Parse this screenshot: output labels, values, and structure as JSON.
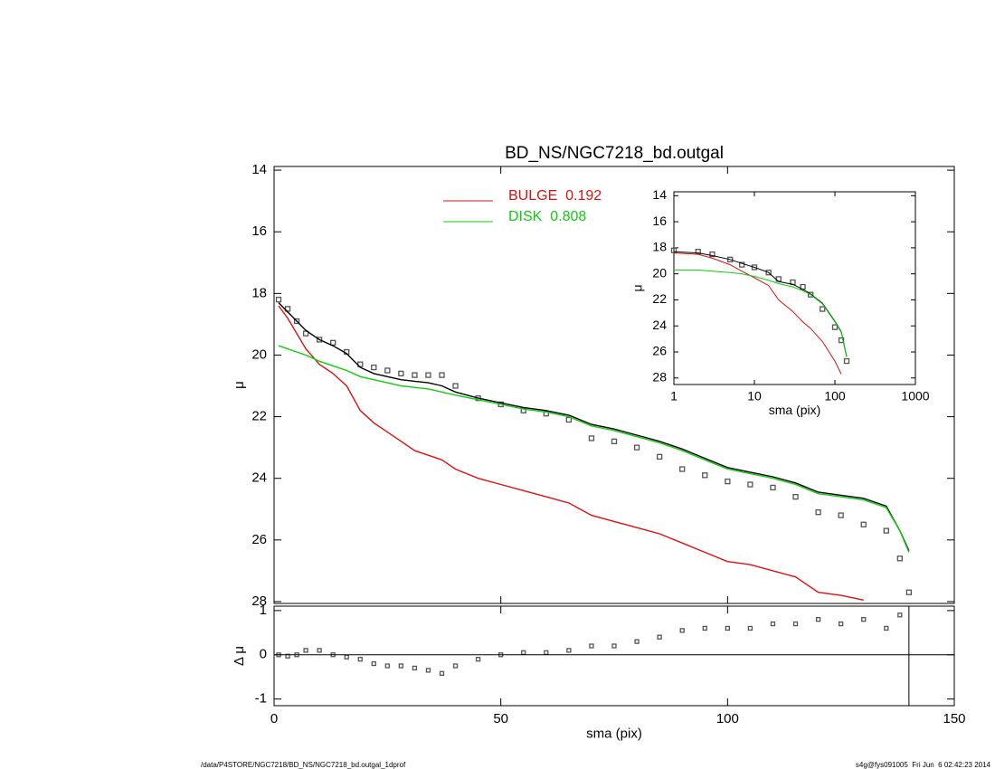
{
  "chart_data": [
    {
      "type": "line",
      "title": "BD_NS/NGC7218_bd.outgal",
      "ylabel": "μ",
      "x": [
        1,
        3,
        5,
        7,
        10,
        13,
        16,
        19,
        22,
        25,
        28,
        31,
        34,
        37,
        40,
        45,
        50,
        55,
        60,
        65,
        70,
        75,
        80,
        85,
        90,
        95,
        100,
        105,
        110,
        115,
        120,
        125,
        130,
        135,
        138,
        140
      ],
      "series": [
        {
          "type": "scatter",
          "color": "#555555",
          "values": [
            18.2,
            18.5,
            18.9,
            19.3,
            19.5,
            19.6,
            19.9,
            20.3,
            20.4,
            20.5,
            20.6,
            20.65,
            20.65,
            20.65,
            21.0,
            21.4,
            21.6,
            21.8,
            21.9,
            22.1,
            22.7,
            22.8,
            23.0,
            23.3,
            23.7,
            23.9,
            24.1,
            24.2,
            24.3,
            24.6,
            25.1,
            25.2,
            25.5,
            25.7,
            26.6,
            27.7
          ]
        },
        {
          "type": "line",
          "color": "#000000",
          "values": [
            18.3,
            18.6,
            18.9,
            19.2,
            19.5,
            19.7,
            19.95,
            20.4,
            20.6,
            20.7,
            20.8,
            20.85,
            20.9,
            21.0,
            21.2,
            21.4,
            21.55,
            21.7,
            21.8,
            21.95,
            22.25,
            22.4,
            22.6,
            22.8,
            23.05,
            23.35,
            23.65,
            23.8,
            23.95,
            24.15,
            24.45,
            24.55,
            24.65,
            24.9,
            25.7,
            26.35
          ]
        },
        {
          "type": "line",
          "name": "BULGE  0.192",
          "color": "#dd1111",
          "values": [
            18.4,
            18.8,
            19.3,
            19.8,
            20.3,
            20.6,
            21.0,
            21.8,
            22.2,
            22.5,
            22.8,
            23.1,
            23.25,
            23.4,
            23.7,
            24.0,
            24.2,
            24.4,
            24.6,
            24.8,
            25.2,
            25.4,
            25.6,
            25.8,
            26.1,
            26.4,
            26.7,
            26.8,
            27.0,
            27.2,
            27.7,
            27.8,
            27.95,
            null,
            null,
            null
          ]
        },
        {
          "type": "line",
          "name": "DISK  0.808",
          "color": "#11cc11",
          "values": [
            19.7,
            19.8,
            19.9,
            20.0,
            20.2,
            20.35,
            20.5,
            20.7,
            20.8,
            20.9,
            21.0,
            21.05,
            21.1,
            21.2,
            21.3,
            21.45,
            21.6,
            21.75,
            21.85,
            22.0,
            22.3,
            22.45,
            22.65,
            22.85,
            23.1,
            23.4,
            23.7,
            23.85,
            24.0,
            24.2,
            24.5,
            24.6,
            24.7,
            24.95,
            25.7,
            26.4
          ]
        }
      ],
      "xlim": [
        0,
        150
      ],
      "xticks": [
        0,
        50,
        100,
        150
      ],
      "ylim": [
        28.06,
        13.88
      ],
      "yticks": [
        14,
        16,
        18,
        20,
        22,
        24,
        26,
        28
      ]
    },
    {
      "type": "line",
      "xlabel": "sma (pix)",
      "ylabel": "Δ μ",
      "x": [
        1,
        3,
        5,
        7,
        10,
        13,
        16,
        19,
        22,
        25,
        28,
        31,
        34,
        37,
        40,
        45,
        50,
        55,
        60,
        65,
        70,
        75,
        80,
        85,
        90,
        95,
        100,
        105,
        110,
        115,
        120,
        125,
        130,
        135,
        138
      ],
      "series": [
        {
          "type": "scatter",
          "color": "#555555",
          "values": [
            0,
            -0.03,
            0,
            0.1,
            0.1,
            0,
            -0.05,
            -0.1,
            -0.2,
            -0.25,
            -0.25,
            -0.3,
            -0.35,
            -0.42,
            -0.25,
            -0.1,
            0,
            0.05,
            0.05,
            0.1,
            0.2,
            0.2,
            0.3,
            0.4,
            0.55,
            0.6,
            0.6,
            0.6,
            0.7,
            0.7,
            0.8,
            0.7,
            0.8,
            0.6,
            0.9
          ]
        }
      ],
      "xlim": [
        0,
        150
      ],
      "xticks": [
        0,
        50,
        100,
        150
      ],
      "ylim": [
        -1.15,
        1.1
      ],
      "yticks": [
        -1,
        0,
        1
      ]
    },
    {
      "type": "line",
      "xlabel": "sma (pix)",
      "ylabel": "μ",
      "xlog": true,
      "x": [
        1,
        2,
        3,
        5,
        7,
        10,
        15,
        20,
        30,
        40,
        50,
        70,
        100,
        120,
        140
      ],
      "series": [
        {
          "type": "scatter",
          "color": "#555555",
          "values": [
            18.2,
            18.3,
            18.5,
            18.9,
            19.3,
            19.5,
            19.9,
            20.4,
            20.65,
            21.0,
            21.6,
            22.7,
            24.1,
            25.1,
            26.7
          ]
        },
        {
          "type": "line",
          "color": "#000000",
          "values": [
            18.3,
            18.4,
            18.6,
            18.9,
            19.2,
            19.5,
            19.9,
            20.6,
            20.8,
            21.2,
            21.55,
            22.25,
            23.65,
            24.45,
            26.35
          ]
        },
        {
          "type": "line",
          "color": "#dd1111",
          "values": [
            18.4,
            18.5,
            18.8,
            19.3,
            19.8,
            20.3,
            20.9,
            22.0,
            22.9,
            23.7,
            24.2,
            25.2,
            26.7,
            27.7,
            null
          ]
        },
        {
          "type": "line",
          "color": "#11cc11",
          "values": [
            19.7,
            19.7,
            19.8,
            19.9,
            20.0,
            20.2,
            20.5,
            20.75,
            21.0,
            21.3,
            21.6,
            22.3,
            23.7,
            24.5,
            26.4
          ]
        }
      ],
      "xlim": [
        1,
        1000
      ],
      "xticks": [
        1,
        10,
        100,
        1000
      ],
      "ylim": [
        28.5,
        13.7
      ],
      "yticks": [
        14,
        16,
        18,
        20,
        22,
        24,
        26,
        28
      ]
    }
  ],
  "footer": {
    "left": "/data/P4STORE/NGC7218/BD_NS/NGC7218_bd.outgal_1dprof",
    "right": "s4g@fys091005  Fri Jun  6 02:42:23 2014"
  }
}
